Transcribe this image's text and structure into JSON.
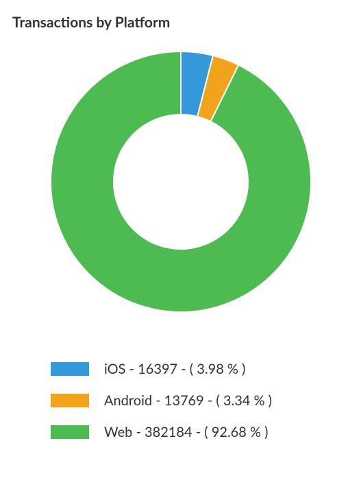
{
  "chart": {
    "type": "donut",
    "title": "Transactions by Platform",
    "title_fontsize": 21,
    "title_fontweight": 700,
    "title_color": "#333333",
    "background_color": "#ffffff",
    "outer_radius": 190,
    "inner_radius": 98,
    "start_angle_deg": -90,
    "series": [
      {
        "label": "iOS",
        "value": 16397,
        "percent": 3.98,
        "color": "#3598db"
      },
      {
        "label": "Android",
        "value": 13769,
        "percent": 3.34,
        "color": "#f2a31c"
      },
      {
        "label": "Web",
        "value": 382184,
        "percent": 92.68,
        "color": "#4eba52"
      }
    ],
    "legend": {
      "swatch_width": 56,
      "swatch_height": 20,
      "fontsize": 20,
      "text_color": "#333333",
      "separator": " - ",
      "percent_prefix": "( ",
      "percent_suffix": " % )"
    }
  }
}
